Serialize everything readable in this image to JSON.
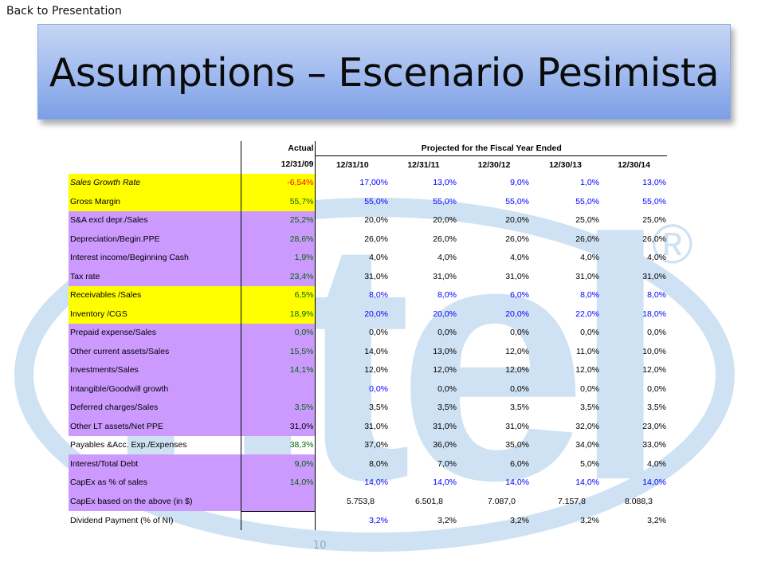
{
  "nav": {
    "back_label": "Back to Presentation"
  },
  "slide": {
    "title": "Assumptions – Escenario Pesimista",
    "page_number": "10"
  },
  "background": {
    "logo_text": "ntel",
    "registered_mark": "®",
    "logo_color": "#cfe2f3"
  },
  "colors": {
    "highlight_yellow": "#ffff00",
    "highlight_violet": "#cc99ff",
    "input_blue": "#0000ff",
    "actual_green": "#006600",
    "negative_red": "#ff0000"
  },
  "table": {
    "actual_header": "Actual",
    "projected_header": "Projected for the Fiscal Year Ended",
    "dates": [
      "12/31/09",
      "12/31/10",
      "12/31/11",
      "12/30/12",
      "12/30/13",
      "12/30/14"
    ],
    "rows": [
      {
        "label": "Sales Growth Rate",
        "highlight": "yellow",
        "italic": true,
        "actual": "-6,54%",
        "actual_color": "red",
        "proj_color": "blue",
        "projected": [
          "17,00%",
          "13,0%",
          "9,0%",
          "1,0%",
          "13,0%"
        ]
      },
      {
        "label": "Gross Margin",
        "highlight": "yellow",
        "actual": "55,7%",
        "actual_color": "green",
        "proj_color": "blue",
        "projected": [
          "55,0%",
          "55,0%",
          "55,0%",
          "55,0%",
          "55,0%"
        ]
      },
      {
        "label": "S&A excl depr./Sales",
        "highlight": "violet",
        "actual": "25,2%",
        "actual_color": "green",
        "proj_color": "black",
        "projected": [
          "20,0%",
          "20,0%",
          "20,0%",
          "25,0%",
          "25,0%"
        ]
      },
      {
        "label": "Depreciation/Begin.PPE",
        "highlight": "violet",
        "actual": "28,6%",
        "actual_color": "green",
        "proj_color": "black",
        "projected": [
          "26,0%",
          "26,0%",
          "26,0%",
          "26,0%",
          "26,0%"
        ]
      },
      {
        "label": "Interest income/Beginning Cash",
        "highlight": "violet",
        "actual": "1,9%",
        "actual_color": "green",
        "proj_color": "black",
        "projected": [
          "4,0%",
          "4,0%",
          "4,0%",
          "4,0%",
          "4,0%"
        ]
      },
      {
        "label": "Tax rate",
        "highlight": "violet",
        "actual": "23,4%",
        "actual_color": "green",
        "proj_color": "black",
        "projected": [
          "31,0%",
          "31,0%",
          "31,0%",
          "31,0%",
          "31,0%"
        ]
      },
      {
        "label": "Receivables /Sales",
        "highlight": "yellow",
        "actual": "6,5%",
        "actual_color": "green",
        "proj_color": "blue",
        "projected": [
          "8,0%",
          "8,0%",
          "6,0%",
          "8,0%",
          "8,0%"
        ]
      },
      {
        "label": "Inventory /CGS",
        "highlight": "yellow",
        "actual": "18,9%",
        "actual_color": "green",
        "proj_color": "blue",
        "projected": [
          "20,0%",
          "20,0%",
          "20,0%",
          "22,0%",
          "18,0%"
        ]
      },
      {
        "label": "Prepaid expense/Sales",
        "highlight": "violet",
        "actual": "0,0%",
        "actual_color": "green",
        "proj_color": "black",
        "projected": [
          "0,0%",
          "0,0%",
          "0,0%",
          "0,0%",
          "0,0%"
        ]
      },
      {
        "label": "Other current assets/Sales",
        "highlight": "violet",
        "actual": "15,5%",
        "actual_color": "green",
        "proj_color": "black",
        "projected": [
          "14,0%",
          "13,0%",
          "12,0%",
          "11,0%",
          "10,0%"
        ]
      },
      {
        "label": "Investments/Sales",
        "highlight": "violet",
        "actual": "14,1%",
        "actual_color": "green",
        "proj_color": "black",
        "projected": [
          "12,0%",
          "12,0%",
          "12,0%",
          "12,0%",
          "12,0%"
        ]
      },
      {
        "label": "Intangible/Goodwill growth",
        "highlight": "violet",
        "actual": "",
        "actual_color": "green",
        "proj_color": "black",
        "projected": [
          "0,0%",
          "0,0%",
          "0,0%",
          "0,0%",
          "0,0%"
        ],
        "first_proj_color": "blue"
      },
      {
        "label": "Deferred charges/Sales",
        "highlight": "violet",
        "actual": "3,5%",
        "actual_color": "green",
        "proj_color": "black",
        "projected": [
          "3,5%",
          "3,5%",
          "3,5%",
          "3,5%",
          "3,5%"
        ]
      },
      {
        "label": "Other LT  assets/Net PPE",
        "highlight": "violet",
        "actual": "31,0%",
        "actual_color": "black",
        "proj_color": "black",
        "projected": [
          "31,0%",
          "31,0%",
          "31,0%",
          "32,0%",
          "23,0%"
        ]
      },
      {
        "label": "Payables &Acc. Exp./Expenses",
        "highlight": "none",
        "actual": "38,3%",
        "actual_color": "green",
        "proj_color": "black",
        "projected": [
          "37,0%",
          "36,0%",
          "35,0%",
          "34,0%",
          "33,0%"
        ]
      },
      {
        "label": "Interest/Total Debt",
        "highlight": "violet",
        "actual": "9,0%",
        "actual_color": "green",
        "proj_color": "black",
        "projected": [
          "8,0%",
          "7,0%",
          "6,0%",
          "5,0%",
          "4,0%"
        ]
      },
      {
        "label": "CapEx as % of sales",
        "highlight": "violet",
        "actual": "14,0%",
        "actual_color": "green",
        "proj_color": "blue",
        "projected": [
          "14,0%",
          "14,0%",
          "14,0%",
          "14,0%",
          "14,0%"
        ]
      },
      {
        "label": "CapEx based on the above (in $)",
        "highlight": "violet",
        "actual": "",
        "actual_color": "green",
        "proj_color": "black",
        "projected": [
          "5.753,8",
          "6.501,8",
          "7.087,0",
          "7.157,8",
          "8.088,3"
        ],
        "shift_left": true,
        "last": true
      },
      {
        "label": "Dividend Payment (% of NI)",
        "highlight": "none",
        "actual": "",
        "actual_color": "green",
        "proj_color": "black",
        "projected": [
          "3,2%",
          "3,2%",
          "3,2%",
          "3,2%",
          "3,2%"
        ],
        "first_proj_color": "blue"
      }
    ]
  }
}
